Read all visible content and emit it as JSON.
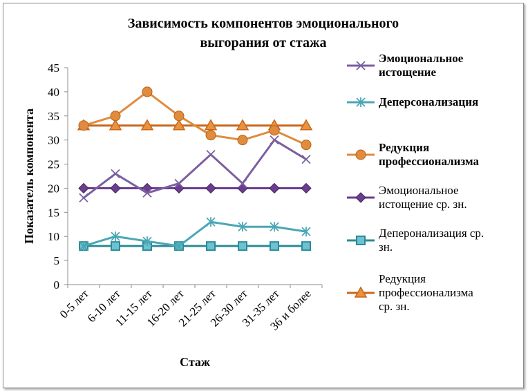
{
  "chart_data": {
    "type": "line",
    "title": [
      "Зависимость компонентов эмоционального",
      "выгорания от стажа"
    ],
    "xlabel": "Стаж",
    "ylabel": "Показатель компонента",
    "ylim": [
      0,
      45
    ],
    "yticks": [
      0,
      5,
      10,
      15,
      20,
      25,
      30,
      35,
      40,
      45
    ],
    "categories": [
      "0-5 лет",
      "6-10 лет",
      "11-15 лет",
      "16-20 лет",
      "21-25 лет",
      "26-30 лет",
      "31-35 лет",
      "36 и более"
    ],
    "grid": false,
    "legend_position": "right",
    "series": [
      {
        "name": "Эмоциональное истощение",
        "legend_lines": [
          "Эмоциональное",
          "истощение"
        ],
        "bold": true,
        "color": "#7b5fa0",
        "marker": "x",
        "values": [
          18,
          23,
          19,
          21,
          27,
          21,
          30,
          26
        ]
      },
      {
        "name": "Деперсонализация",
        "legend_lines": [
          "Деперсонализация"
        ],
        "bold": true,
        "color": "#4aa7b5",
        "marker": "asterisk",
        "values": [
          8,
          10,
          9,
          8,
          13,
          12,
          12,
          11
        ]
      },
      {
        "name": "Редукция профессионализма",
        "legend_lines": [
          "Редукция",
          "профессионализма"
        ],
        "bold": true,
        "color": "#e08b3d",
        "marker": "circle",
        "values": [
          33,
          35,
          40,
          35,
          31,
          30,
          32,
          29
        ]
      },
      {
        "name": "Эмоциональное истощение ср. зн.",
        "legend_lines": [
          "Эмоциональное",
          "истощение ср. зн."
        ],
        "bold": false,
        "color": "#6a3d8f",
        "marker": "diamond",
        "values": [
          20,
          20,
          20,
          20,
          20,
          20,
          20,
          20
        ]
      },
      {
        "name": "Деперонализация ср. зн.",
        "legend_lines": [
          "Деперонализация ср.",
          "зн."
        ],
        "bold": false,
        "color": "#2c8a97",
        "marker": "square",
        "values": [
          8,
          8,
          8,
          8,
          8,
          8,
          8,
          8
        ]
      },
      {
        "name": "Редукция профессионализма ср. зн.",
        "legend_lines": [
          "Редукция",
          "профессионализма",
          "ср. зн."
        ],
        "bold": false,
        "color": "#c8671c",
        "marker": "triangle",
        "values": [
          33,
          33,
          33,
          33,
          33,
          33,
          33,
          33
        ]
      }
    ]
  }
}
